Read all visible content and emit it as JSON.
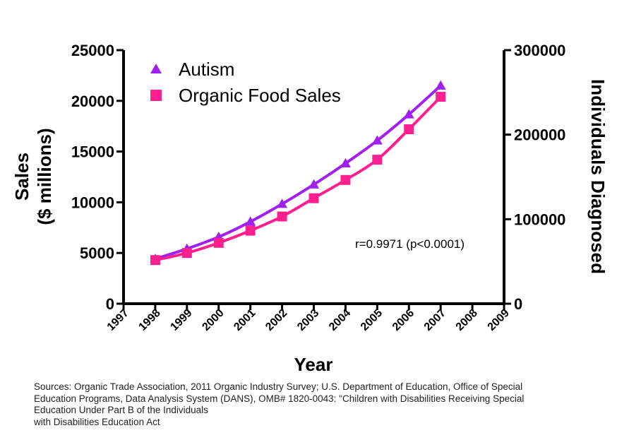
{
  "chart_data": {
    "type": "line",
    "x": [
      1998,
      1999,
      2000,
      2001,
      2002,
      2003,
      2004,
      2005,
      2006,
      2007
    ],
    "series": [
      {
        "name": "Autism",
        "axis": "right",
        "marker": "triangle",
        "color": "#a020f0",
        "values": [
          53000,
          65000,
          79000,
          97000,
          118000,
          141000,
          166000,
          193000,
          224000,
          258000
        ]
      },
      {
        "name": "Organic Food Sales",
        "axis": "left",
        "marker": "square",
        "color": "#ff1f8e",
        "values": [
          4300,
          5000,
          6000,
          7200,
          8600,
          10400,
          12200,
          14200,
          17200,
          20400
        ]
      }
    ],
    "xlabel": "Year",
    "ylabel_left_line1": "Sales",
    "ylabel_left_line2": "($ millions)",
    "ylabel_right": "Individuals Diagnosed",
    "xlim": [
      1997,
      2009
    ],
    "ylim_left": [
      0,
      25000
    ],
    "ylim_right": [
      0,
      300000
    ],
    "x_ticks": [
      "1997",
      "1998",
      "1999",
      "2000",
      "2001",
      "2002",
      "2003",
      "2004",
      "2005",
      "2006",
      "2007",
      "2008",
      "2009"
    ],
    "y_left_ticks": [
      "0",
      "5000",
      "10000",
      "15000",
      "20000",
      "25000"
    ],
    "y_right_ticks": [
      "0",
      "100000",
      "200000",
      "300000"
    ],
    "annotation": "r=0.9971 (p<0.0001)",
    "legend_position": "top-left",
    "grid": false
  },
  "sources": {
    "line1": "Sources: Organic Trade Association,  2011 Organic Industry Survey; U.S. Department of Education, Office of Special",
    "line2": "Education Programs, Data Analysis System (DANS), OMB# 1820-0043: \"Children with Disabilities Receiving Special",
    "line3": "Education Under Part B of the Individuals",
    "line4": "with Disabilities Education Act"
  }
}
